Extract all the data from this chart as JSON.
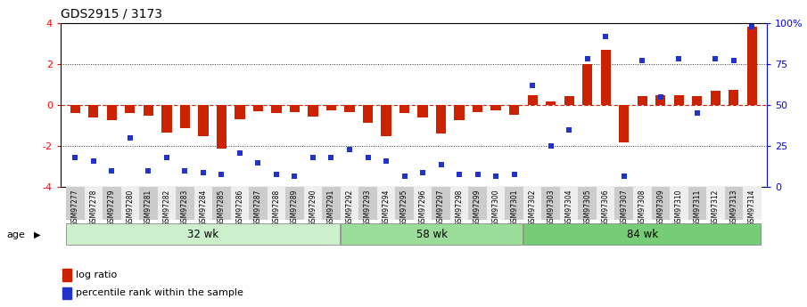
{
  "title": "GDS2915 / 3173",
  "samples": [
    "GSM97277",
    "GSM97278",
    "GSM97279",
    "GSM97280",
    "GSM97281",
    "GSM97282",
    "GSM97283",
    "GSM97284",
    "GSM97285",
    "GSM97286",
    "GSM97287",
    "GSM97288",
    "GSM97289",
    "GSM97290",
    "GSM97291",
    "GSM97292",
    "GSM97293",
    "GSM97294",
    "GSM97295",
    "GSM97296",
    "GSM97297",
    "GSM97298",
    "GSM97299",
    "GSM97300",
    "GSM97301",
    "GSM97302",
    "GSM97303",
    "GSM97304",
    "GSM97305",
    "GSM97306",
    "GSM97307",
    "GSM97308",
    "GSM97309",
    "GSM97310",
    "GSM97311",
    "GSM97312",
    "GSM97313",
    "GSM97314"
  ],
  "log_ratio": [
    -0.4,
    -0.6,
    -0.75,
    -0.4,
    -0.5,
    -1.35,
    -1.1,
    -1.5,
    -2.1,
    -0.7,
    -0.3,
    -0.4,
    -0.35,
    -0.55,
    -0.25,
    -0.35,
    -0.85,
    -1.5,
    -0.4,
    -0.6,
    -1.4,
    -0.75,
    -0.35,
    -0.25,
    -0.45,
    0.5,
    0.2,
    0.45,
    2.0,
    2.7,
    -1.8,
    0.45,
    0.5,
    0.5,
    0.45,
    0.7,
    0.75,
    3.8
  ],
  "percentile": [
    18,
    16,
    10,
    30,
    10,
    18,
    10,
    9,
    8,
    21,
    15,
    8,
    7,
    18,
    18,
    23,
    18,
    16,
    7,
    9,
    14,
    8,
    8,
    7,
    8,
    62,
    25,
    35,
    78,
    92,
    7,
    77,
    55,
    78,
    45,
    78,
    77,
    98
  ],
  "groups": [
    {
      "label": "32 wk",
      "start": 0,
      "end": 15,
      "color": "#ccf0cc"
    },
    {
      "label": "58 wk",
      "start": 15,
      "end": 25,
      "color": "#99dd99"
    },
    {
      "label": "84 wk",
      "start": 25,
      "end": 38,
      "color": "#77cc77"
    }
  ],
  "bar_color": "#cc2200",
  "dot_color": "#2233cc",
  "ylim": [
    -4,
    4
  ],
  "y2lim": [
    0,
    100
  ],
  "hline_color": "#cc2200",
  "dotted_line_color": "#333333",
  "title_fontsize": 10,
  "age_label": "age"
}
